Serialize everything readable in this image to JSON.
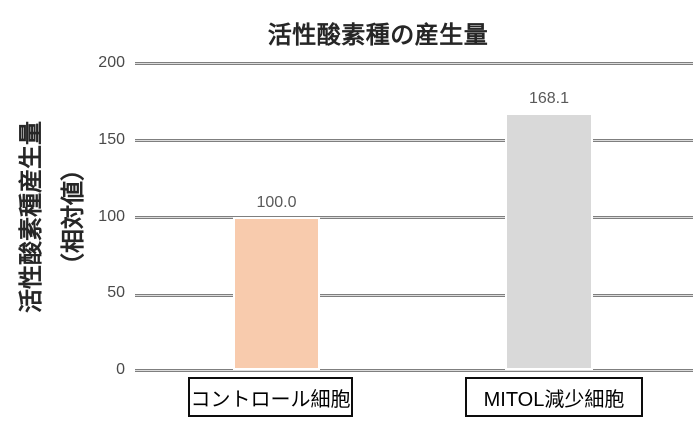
{
  "chart_data": {
    "type": "bar",
    "title": "活性酸素種の産生量",
    "ylabel_line1": "活性酸素種産生量",
    "ylabel_line2": "（相対値）",
    "categories": [
      "コントロール細胞",
      "MITOL減少細胞"
    ],
    "values": [
      100.0,
      168.1
    ],
    "value_labels": [
      "100.0",
      "168.1"
    ],
    "bar_colors": [
      "#F8CBAD",
      "#D9D9D9"
    ],
    "bar_border_color": "#FFFFFF",
    "yticks": [
      0,
      50,
      100,
      150,
      200
    ],
    "ytick_labels": [
      "0",
      "50",
      "100",
      "150",
      "200"
    ],
    "ylim": [
      0,
      200
    ],
    "grid": true,
    "gridline_color": "#7F7F7F",
    "legend": false,
    "background": "#FFFFFF",
    "title_color": "#262626",
    "value_label_color": "#595959"
  }
}
